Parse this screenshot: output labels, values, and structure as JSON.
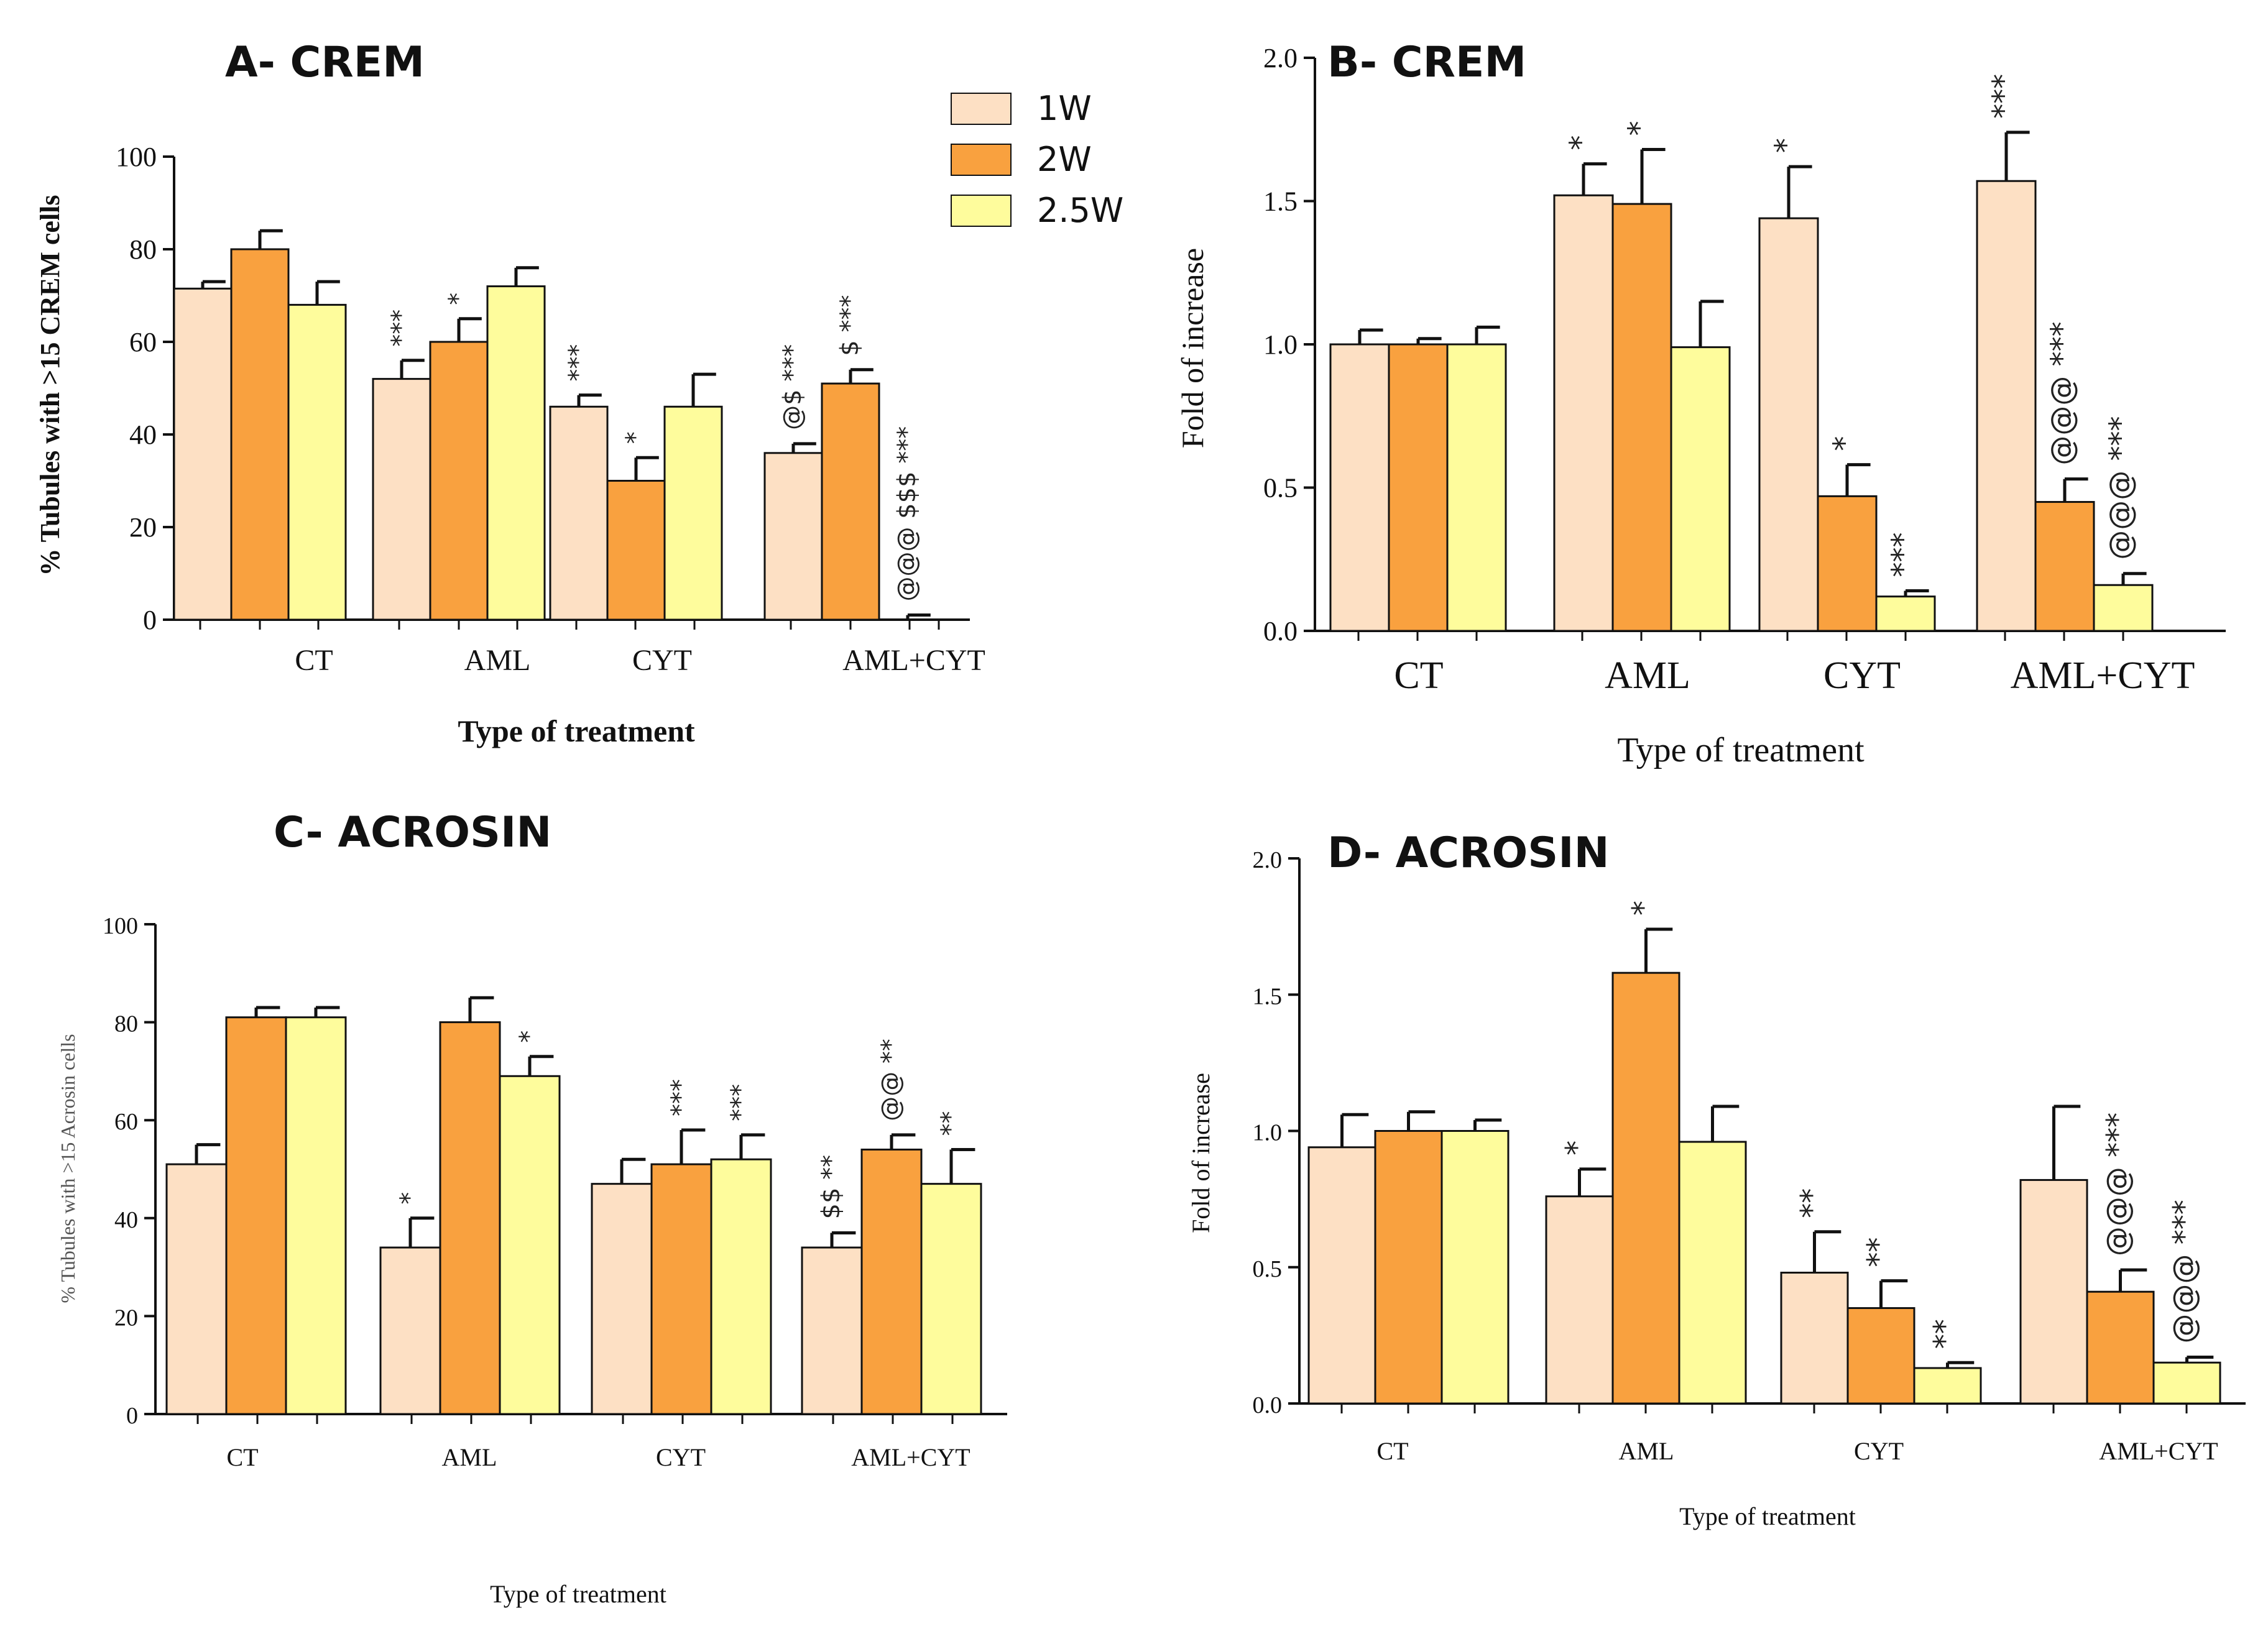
{
  "colors": {
    "1W": "#fde0c4",
    "2W": "#f9a13f",
    "2.5W": "#fefc9c",
    "stroke": "#111111"
  },
  "legend": {
    "entries": [
      "1W",
      "2W",
      "2.5W"
    ]
  },
  "chart_data": [
    {
      "panel": "A",
      "type": "bar",
      "title": "A- CREM",
      "xlabel": "Type of treatment",
      "ylabel": "% Tubules with >15 CREM cells",
      "ylim": [
        0,
        100
      ],
      "yticks": [
        0,
        20,
        40,
        60,
        80,
        100
      ],
      "categories": [
        "CT",
        "AML",
        "CYT",
        "AML+CYT"
      ],
      "series": [
        {
          "name": "1W",
          "values": [
            71.5,
            52,
            46,
            36
          ],
          "errors": [
            1.5,
            4,
            2.5,
            2
          ]
        },
        {
          "name": "2W",
          "values": [
            80,
            60,
            30,
            51
          ],
          "errors": [
            4,
            5,
            5,
            3
          ]
        },
        {
          "name": "2.5W",
          "values": [
            68,
            72,
            46,
            0
          ],
          "errors": [
            5,
            4,
            7,
            1
          ]
        }
      ],
      "annotations": [
        [
          "",
          "",
          ""
        ],
        [
          "***",
          "*",
          ""
        ],
        [
          "***",
          "*",
          ""
        ],
        [
          "@$ ***",
          "$ ***",
          "@@@ $$$ ***"
        ]
      ]
    },
    {
      "panel": "B",
      "type": "bar",
      "title": "B- CREM",
      "xlabel": "Type of treatment",
      "ylabel": "Fold of increase",
      "ylim": [
        0,
        2.0
      ],
      "yticks": [
        "0.0",
        "0.5",
        "1.0",
        "1.5",
        "2.0"
      ],
      "categories": [
        "CT",
        "AML",
        "CYT",
        "AML+CYT"
      ],
      "series": [
        {
          "name": "1W",
          "values": [
            1.0,
            1.52,
            1.44,
            1.57
          ],
          "errors": [
            0.05,
            0.11,
            0.18,
            0.17
          ]
        },
        {
          "name": "2W",
          "values": [
            1.0,
            1.49,
            0.47,
            0.45
          ],
          "errors": [
            0.02,
            0.19,
            0.11,
            0.08
          ]
        },
        {
          "name": "2.5W",
          "values": [
            1.0,
            0.99,
            0.12,
            0.16
          ],
          "errors": [
            0.06,
            0.16,
            0.02,
            0.04
          ]
        }
      ],
      "annotations": [
        [
          "",
          "",
          ""
        ],
        [
          "*",
          "*",
          ""
        ],
        [
          "*",
          "*",
          "***"
        ],
        [
          "***",
          "@@@ ***",
          "@@@ ***"
        ]
      ]
    },
    {
      "panel": "C",
      "type": "bar",
      "title": "C- ACROSIN",
      "xlabel": "Type of treatment",
      "ylabel": "% Tubules with >15 Acrosin cells",
      "ylim": [
        0,
        100
      ],
      "yticks": [
        0,
        20,
        40,
        60,
        80,
        100
      ],
      "categories": [
        "CT",
        "AML",
        "CYT",
        "AML+CYT"
      ],
      "series": [
        {
          "name": "1W",
          "values": [
            51,
            34,
            47,
            34
          ],
          "errors": [
            4,
            6,
            5,
            3
          ]
        },
        {
          "name": "2W",
          "values": [
            81,
            80,
            51,
            54
          ],
          "errors": [
            2,
            5,
            7,
            3
          ]
        },
        {
          "name": "2.5W",
          "values": [
            81,
            69,
            52,
            47
          ],
          "errors": [
            2,
            4,
            5,
            7
          ]
        }
      ],
      "annotations": [
        [
          "",
          "",
          ""
        ],
        [
          "*",
          "",
          "*"
        ],
        [
          "",
          "***",
          "***"
        ],
        [
          "$$ **",
          "@@ **",
          "**"
        ]
      ]
    },
    {
      "panel": "D",
      "type": "bar",
      "title": "D- ACROSIN",
      "xlabel": "Type of treatment",
      "ylabel": "Fold of increase",
      "ylim": [
        0,
        2.0
      ],
      "yticks": [
        "0.0",
        "0.5",
        "1.0",
        "1.5",
        "2.0"
      ],
      "categories": [
        "CT",
        "AML",
        "CYT",
        "AML+CYT"
      ],
      "series": [
        {
          "name": "1W",
          "values": [
            0.94,
            0.76,
            0.48,
            0.82
          ],
          "errors": [
            0.12,
            0.1,
            0.15,
            0.27
          ]
        },
        {
          "name": "2W",
          "values": [
            1.0,
            1.58,
            0.35,
            0.41
          ],
          "errors": [
            0.07,
            0.16,
            0.1,
            0.08
          ]
        },
        {
          "name": "2.5W",
          "values": [
            1.0,
            0.96,
            0.13,
            0.15
          ],
          "errors": [
            0.04,
            0.13,
            0.02,
            0.02
          ]
        }
      ],
      "annotations": [
        [
          "",
          "",
          ""
        ],
        [
          "*",
          "*",
          ""
        ],
        [
          "**",
          "**",
          "**"
        ],
        [
          "",
          "@@@ ***",
          "@@@ ***"
        ]
      ]
    }
  ]
}
